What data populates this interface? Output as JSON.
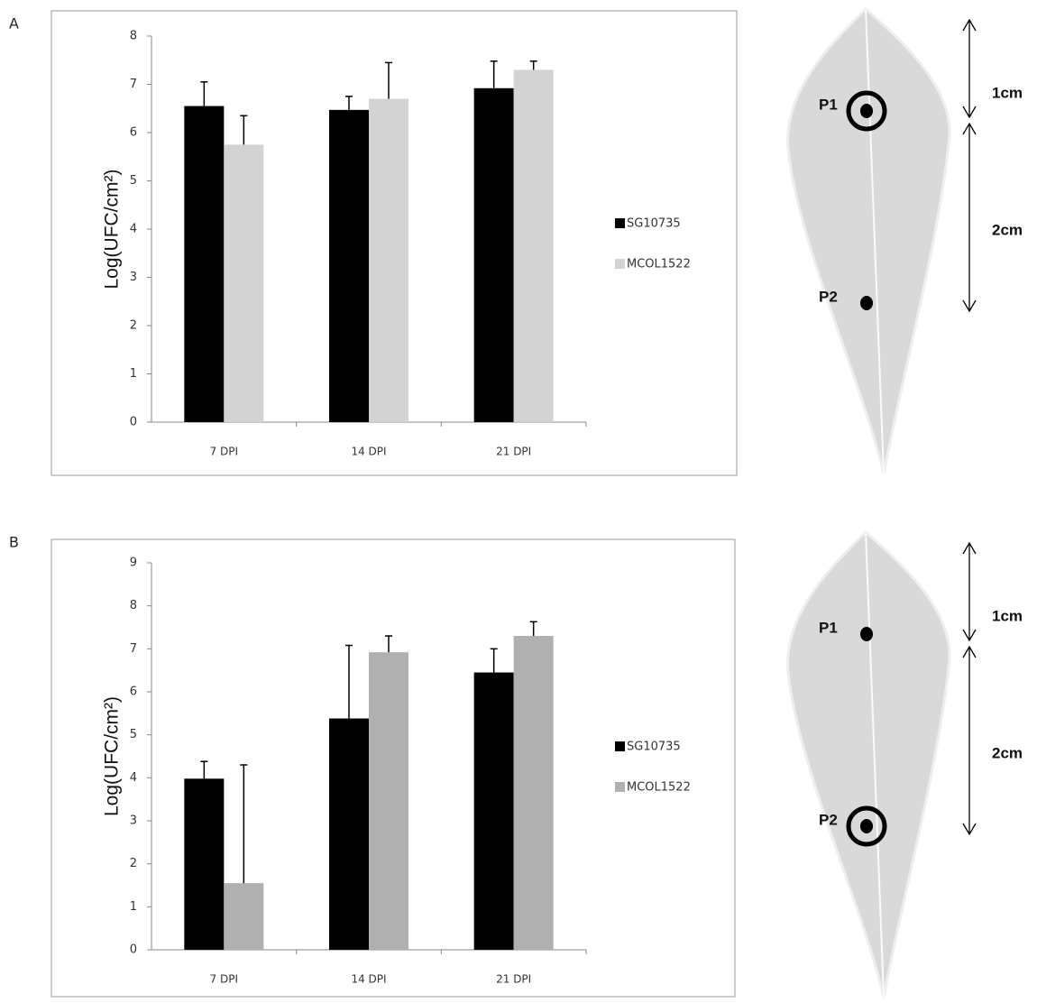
{
  "panel_labels": [
    "A",
    "B"
  ],
  "chart_data": [
    {
      "type": "bar",
      "y_label": "Log(UFC/cm²)",
      "categories": [
        "7 DPI",
        "14 DPI",
        "21 DPI"
      ],
      "series": [
        {
          "name": "SG10735",
          "color": "#000000",
          "values": [
            6.55,
            6.47,
            6.92
          ],
          "errors": [
            0.5,
            0.28,
            0.56
          ]
        },
        {
          "name": "MCOL1522",
          "color": "#d3d3d3",
          "values": [
            5.75,
            6.7,
            7.3
          ],
          "errors": [
            0.6,
            0.75,
            0.18
          ]
        }
      ],
      "ylim": [
        0,
        8
      ],
      "yticks": [
        0,
        1,
        2,
        3,
        4,
        5,
        6,
        7,
        8
      ]
    },
    {
      "type": "bar",
      "y_label": "Log(UFC/cm²)",
      "categories": [
        "7 DPI",
        "14 DPI",
        "21 DPI"
      ],
      "series": [
        {
          "name": "SG10735",
          "color": "#000000",
          "values": [
            3.98,
            5.38,
            6.45
          ],
          "errors": [
            0.4,
            1.7,
            0.55
          ]
        },
        {
          "name": "MCOL1522",
          "color": "#b0b0b0",
          "values": [
            1.55,
            6.92,
            7.3
          ],
          "errors": [
            2.75,
            0.38,
            0.33
          ]
        }
      ],
      "ylim": [
        0,
        9
      ],
      "yticks": [
        0,
        1,
        2,
        3,
        4,
        5,
        6,
        7,
        8,
        9
      ]
    }
  ],
  "diagrams": [
    {
      "points": [
        "P1",
        "P2"
      ],
      "circled_point": 0,
      "distances": [
        "1cm",
        "2cm"
      ]
    },
    {
      "points": [
        "P1",
        "P2"
      ],
      "circled_point": 1,
      "distances": [
        "1cm",
        "2cm"
      ]
    }
  ]
}
